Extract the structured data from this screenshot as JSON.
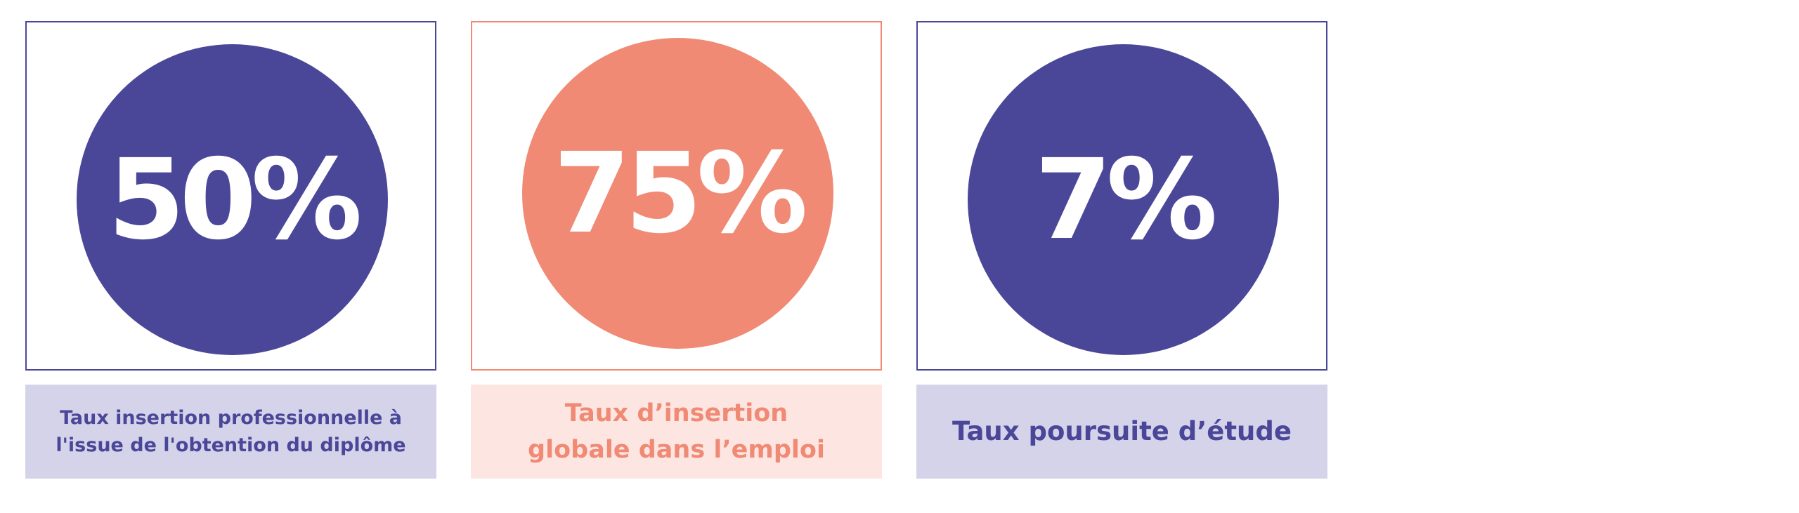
{
  "stats": [
    {
      "value": "50%",
      "caption_line1": "Taux insertion professionnelle à",
      "caption_line2": "l'issue de l'obtention du diplôme",
      "color": "#4a4799",
      "caption_bg": "#d5d3ea"
    },
    {
      "value": "75%",
      "caption_line1": "Taux d’insertion",
      "caption_line2": "globale dans l’emploi",
      "color": "#f08a74",
      "caption_bg": "#fde6e2"
    },
    {
      "value": "7%",
      "caption_line1": "Taux poursuite d’étude",
      "caption_line2": "",
      "color": "#4a4799",
      "caption_bg": "#d5d3ea"
    }
  ]
}
